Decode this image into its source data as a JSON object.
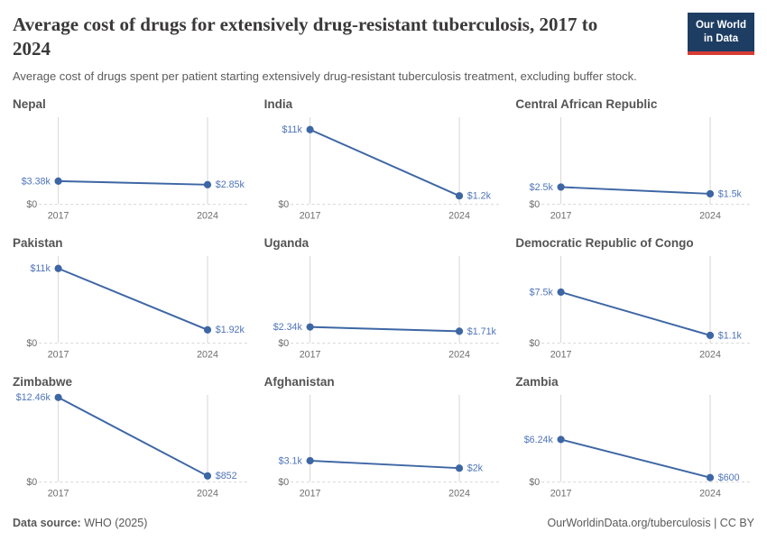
{
  "header": {
    "title": "Average cost of drugs for extensively drug-resistant tuberculosis, 2017 to 2024",
    "subtitle": "Average cost of drugs spent per patient starting extensively drug-resistant tuberculosis treatment, excluding buffer stock.",
    "logo": {
      "line1": "Our World",
      "line2": "in Data",
      "bg_color": "#1d3d63",
      "accent_color": "#d73c34"
    }
  },
  "chart_data": {
    "type": "line",
    "title": "Average cost of drugs for extensively drug-resistant tuberculosis, 2017 to 2024",
    "x": [
      "2017",
      "2024"
    ],
    "ylim": [
      0,
      12460
    ],
    "y_zero_label": "$0",
    "grid": "vertical-year-gridlines, dashed zero baseline",
    "legend_position": "none",
    "series_color": "#3d66a4",
    "label_color": "#4f74b8",
    "gridline_color": "#d6d6d6",
    "series": [
      {
        "name": "Nepal",
        "values": [
          3380,
          2850
        ],
        "value_labels": [
          "$3.38k",
          "$2.85k"
        ]
      },
      {
        "name": "India",
        "values": [
          11000,
          1200
        ],
        "value_labels": [
          "$11k",
          "$1.2k"
        ]
      },
      {
        "name": "Central African Republic",
        "values": [
          2500,
          1500
        ],
        "value_labels": [
          "$2.5k",
          "$1.5k"
        ]
      },
      {
        "name": "Pakistan",
        "values": [
          11000,
          1920
        ],
        "value_labels": [
          "$11k",
          "$1.92k"
        ]
      },
      {
        "name": "Uganda",
        "values": [
          2340,
          1710
        ],
        "value_labels": [
          "$2.34k",
          "$1.71k"
        ]
      },
      {
        "name": "Democratic Republic of Congo",
        "values": [
          7500,
          1100
        ],
        "value_labels": [
          "$7.5k",
          "$1.1k"
        ]
      },
      {
        "name": "Zimbabwe",
        "values": [
          12460,
          852
        ],
        "value_labels": [
          "$12.46k",
          "$852"
        ]
      },
      {
        "name": "Afghanistan",
        "values": [
          3100,
          2000
        ],
        "value_labels": [
          "$3.1k",
          "$2k"
        ]
      },
      {
        "name": "Zambia",
        "values": [
          6240,
          600
        ],
        "value_labels": [
          "$6.24k",
          "$600"
        ]
      }
    ]
  },
  "footer": {
    "source_label": "Data source:",
    "source_value": " WHO (2025)",
    "link": "OurWorldinData.org/tuberculosis",
    "license": " | CC BY"
  }
}
